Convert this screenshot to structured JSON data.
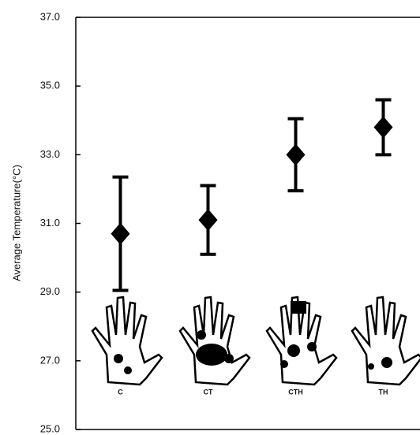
{
  "chart_data": {
    "type": "errorbar",
    "y_label": "Average Temperature(°C)",
    "categories": [
      "C",
      "CT",
      "CTH",
      "TH"
    ],
    "values": [
      30.7,
      31.1,
      33.0,
      33.8
    ],
    "errors": [
      1.65,
      1.0,
      1.05,
      0.8
    ],
    "color": "#000000",
    "ylim": [
      25,
      37
    ],
    "yticks": [
      {
        "value": 25,
        "label": "25.0"
      },
      {
        "value": 27,
        "label": "27.0"
      },
      {
        "value": 29,
        "label": "29.0"
      },
      {
        "value": 31,
        "label": "31.0"
      },
      {
        "value": 33,
        "label": "33.0"
      },
      {
        "value": 35,
        "label": "35.0"
      },
      {
        "value": 37,
        "label": "37.0"
      }
    ],
    "grid": false
  }
}
